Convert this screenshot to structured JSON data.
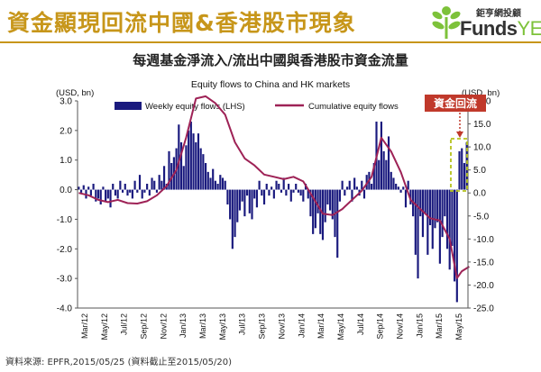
{
  "slide": {
    "headline": "資金顯現回流中國&香港股市現象",
    "subtitle": "每週基金淨流入/流出中國與香港股市資金流量",
    "source": "資料來源: EPFR,2015/05/25 (資料截止至2015/05/20)",
    "logo_cn": "鉅亨網投顧",
    "logo_funds": "Funds",
    "logo_yes": "YES",
    "colors": {
      "headline": "#c7961a",
      "bar": "#1a1a7e",
      "line": "#9e2256",
      "callout": "#c0392b",
      "dashed_box": "#b5c21b",
      "logo_green": "#7dc23a"
    }
  },
  "chart_data": {
    "type": "bar",
    "title": "Equity flows to China and HK markets",
    "ylabel_left": "(USD, bn)",
    "ylabel_right": "(USD, bn)",
    "ylim_left": [
      -4.0,
      3.0
    ],
    "ylim_right": [
      -25.0,
      20.0
    ],
    "yticks_left": [
      "3.0",
      "2.0",
      "1.0",
      "0.0",
      "-1.0",
      "-2.0",
      "-3.0",
      "-4.0"
    ],
    "yticks_right": [
      "20.0",
      "15.0",
      "10.0",
      "5.0",
      "0.0",
      "-5.0",
      "-10.0",
      "-15.0",
      "-20.0",
      "-25.0"
    ],
    "xticks": [
      "Mar/12",
      "May/12",
      "Jul/12",
      "Sep/12",
      "Nov/12",
      "Jan/13",
      "Mar/13",
      "May/13",
      "Jul/13",
      "Sep/13",
      "Nov/13",
      "Jan/14",
      "Mar/14",
      "May/14",
      "Jul/14",
      "Sep/14",
      "Nov/14",
      "Jan/15",
      "Mar/15",
      "May/15"
    ],
    "grid": false,
    "legend_position": "top",
    "annotation": "資金回流",
    "series": [
      {
        "name": "Weekly equity flows (LHS)",
        "kind": "bar",
        "axis": "left",
        "values": [
          0.1,
          -0.1,
          0.15,
          -0.3,
          0.1,
          -0.2,
          0.2,
          -0.4,
          -0.3,
          -0.5,
          0.1,
          -0.4,
          -0.3,
          -0.6,
          0.2,
          -0.2,
          -0.3,
          0.3,
          -0.1,
          0.2,
          -0.2,
          -0.1,
          -0.3,
          0.3,
          -0.1,
          0.5,
          -0.3,
          -0.1,
          0.2,
          -0.2,
          0.4,
          0.3,
          -0.1,
          0.5,
          0.3,
          0.8,
          0.2,
          1.3,
          0.9,
          1.1,
          1.4,
          2.2,
          1.6,
          0.8,
          1.5,
          2.0,
          2.3,
          1.9,
          1.6,
          1.9,
          1.4,
          1.2,
          0.9,
          0.6,
          0.4,
          0.7,
          0.3,
          0.2,
          0.5,
          0.4,
          0.3,
          -0.5,
          -1.0,
          -2.0,
          -1.6,
          -1.1,
          -0.7,
          -0.4,
          -0.9,
          -0.2,
          -0.8,
          -1.0,
          -0.3,
          -0.6,
          0.3,
          -0.2,
          -0.5,
          0.2,
          -0.2,
          0.1,
          -0.3,
          0.3,
          0.2,
          -0.1,
          0.4,
          -0.2,
          0.2,
          -0.4,
          -0.1,
          0.2,
          -0.1,
          -0.2,
          -0.4,
          0.2,
          -0.3,
          -0.9,
          -1.5,
          -1.3,
          -0.8,
          -1.5,
          -1.7,
          -1.1,
          -0.5,
          -0.7,
          -1.0,
          -1.6,
          -2.3,
          -0.4,
          0.3,
          -0.2,
          0.1,
          0.3,
          -0.4,
          0.4,
          0.1,
          -0.2,
          0.3,
          -0.3,
          0.5,
          0.6,
          0.2,
          0.9,
          2.3,
          1.0,
          2.3,
          1.3,
          1.0,
          1.8,
          0.6,
          0.4,
          0.2,
          0.1,
          -0.1,
          0.1,
          -0.6,
          0.3,
          -0.5,
          -0.9,
          -2.2,
          -3.0,
          -0.9,
          -1.6,
          -0.8,
          -2.2,
          -1.2,
          -2.0,
          -1.3,
          -1.1,
          -2.5,
          -1.6,
          -0.9,
          -2.0,
          -2.7,
          -1.9,
          -3.1,
          -3.8,
          1.3,
          1.4,
          0.9,
          1.6
        ]
      },
      {
        "name": "Cumulative equity flows",
        "kind": "line",
        "axis": "right",
        "x": [
          0,
          4,
          8,
          12,
          16,
          20,
          24,
          28,
          32,
          36,
          40,
          44,
          48,
          52,
          56,
          60,
          64,
          68,
          72,
          76,
          80,
          84,
          88,
          92,
          96,
          100,
          104,
          108,
          112,
          116,
          120,
          124,
          128,
          132,
          136,
          140,
          144,
          148,
          152,
          155,
          157,
          160
        ],
        "values": [
          0.0,
          -0.5,
          -1.5,
          -2.0,
          -1.5,
          -2.2,
          -2.3,
          -1.8,
          -0.5,
          1.5,
          5.0,
          12.0,
          20.5,
          21.0,
          19.5,
          17.0,
          11.0,
          7.5,
          6.0,
          4.0,
          3.5,
          3.0,
          3.5,
          2.5,
          -1.0,
          -4.5,
          -4.8,
          -3.5,
          -1.5,
          0.5,
          3.5,
          12.0,
          9.0,
          4.5,
          -1.5,
          -3.5,
          -5.5,
          -6.0,
          -10.0,
          -18.5,
          -17.0,
          -16.0
        ]
      }
    ]
  }
}
